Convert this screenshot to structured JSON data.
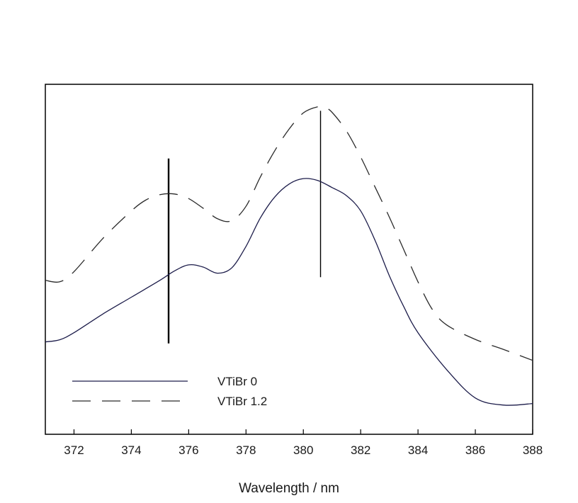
{
  "chart_data": {
    "type": "line",
    "title": "",
    "xlabel": "Wavelength / nm",
    "ylabel": "",
    "xlim": [
      371,
      388
    ],
    "ylim": [
      0,
      1
    ],
    "x_ticks": [
      372,
      374,
      376,
      378,
      380,
      382,
      384,
      386,
      388
    ],
    "y_ticks": [],
    "grid": false,
    "legend_position": "bottom-left",
    "series": [
      {
        "name": "VTiBr 0",
        "style": "solid",
        "color": "#1c1c4a",
        "x": [
          371.0,
          371.5,
          372.0,
          373.0,
          374.0,
          375.0,
          375.5,
          376.0,
          376.5,
          377.0,
          377.5,
          378.0,
          378.5,
          379.0,
          379.5,
          380.0,
          380.5,
          381.0,
          381.5,
          382.0,
          382.5,
          383.0,
          383.5,
          384.0,
          385.0,
          386.0,
          387.0,
          388.0
        ],
        "values": [
          0.24,
          0.247,
          0.27,
          0.33,
          0.385,
          0.44,
          0.47,
          0.49,
          0.483,
          0.463,
          0.48,
          0.55,
          0.642,
          0.71,
          0.752,
          0.77,
          0.764,
          0.741,
          0.715,
          0.665,
          0.57,
          0.455,
          0.355,
          0.27,
          0.15,
          0.058,
          0.035,
          0.04
        ]
      },
      {
        "name": "VTiBr 1.2",
        "style": "dashed",
        "color": "#2a2a2a",
        "x": [
          371.0,
          371.5,
          372.0,
          373.0,
          374.0,
          374.5,
          375.0,
          375.5,
          376.0,
          376.5,
          377.0,
          377.5,
          378.0,
          378.5,
          379.0,
          379.5,
          380.0,
          380.5,
          380.75,
          381.0,
          381.5,
          382.0,
          382.5,
          383.0,
          383.5,
          384.0,
          384.5,
          385.0,
          386.0,
          387.0,
          388.0
        ],
        "values": [
          0.44,
          0.435,
          0.468,
          0.575,
          0.665,
          0.7,
          0.718,
          0.72,
          0.705,
          0.674,
          0.64,
          0.633,
          0.68,
          0.775,
          0.86,
          0.93,
          0.983,
          1.003,
          1.0,
          0.985,
          0.925,
          0.84,
          0.743,
          0.645,
          0.54,
          0.435,
          0.345,
          0.295,
          0.248,
          0.215,
          0.18
        ]
      }
    ],
    "vertical_markers": [
      {
        "x": 375.3,
        "y_range": [
          0.235,
          0.835
        ],
        "stroke_width": 2.4
      },
      {
        "x": 380.6,
        "y_range": [
          0.45,
          0.99
        ],
        "stroke_width": 1.4
      }
    ]
  }
}
